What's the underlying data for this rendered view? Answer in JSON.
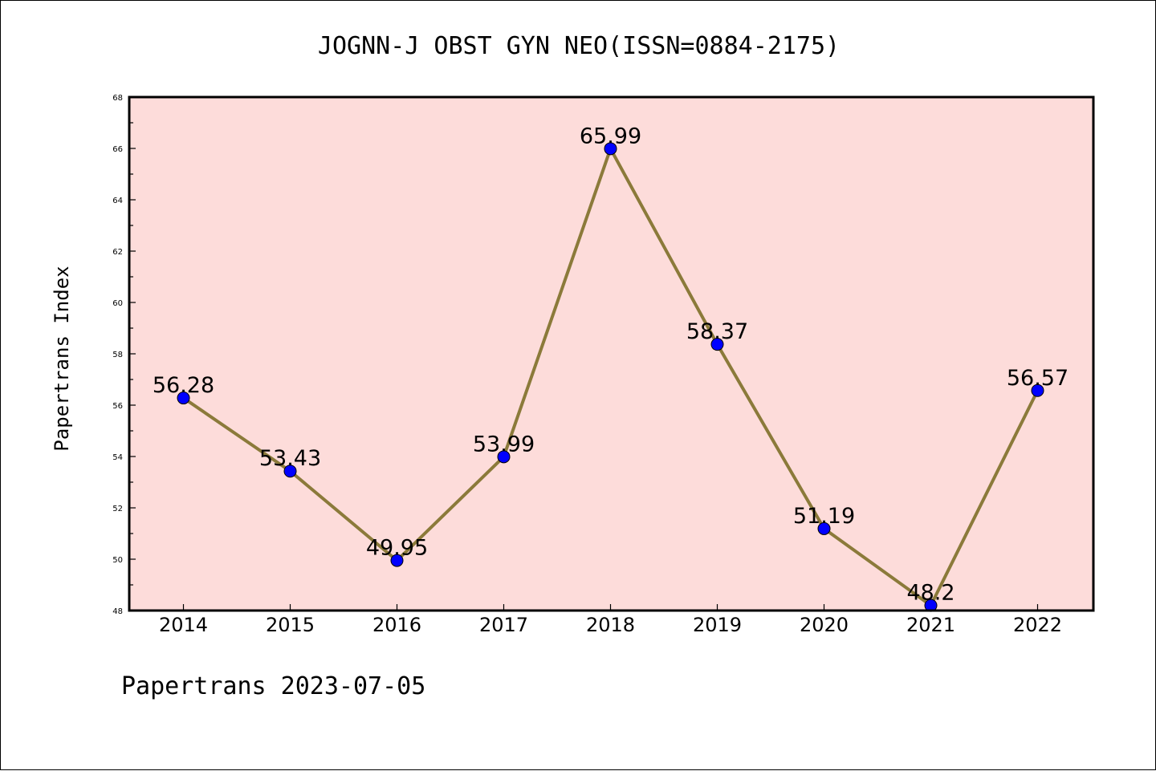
{
  "chart_data": {
    "type": "line",
    "title": "JOGNN-J OBST GYN NEO(ISSN=0884-2175)",
    "ylabel": "Papertrans Index",
    "xlabel": "",
    "categories": [
      "2014",
      "2015",
      "2016",
      "2017",
      "2018",
      "2019",
      "2020",
      "2021",
      "2022"
    ],
    "values": [
      56.28,
      53.43,
      49.95,
      53.99,
      65.99,
      58.37,
      51.19,
      48.2,
      56.57
    ],
    "data_labels": [
      "56.28",
      "53.43",
      "49.95",
      "53.99",
      "65.99",
      "58.37",
      "51.19",
      "48.2",
      "56.57"
    ],
    "ylim": [
      48,
      68
    ],
    "yticks": [
      "48",
      "50",
      "52",
      "54",
      "56",
      "58",
      "60",
      "62",
      "64",
      "66",
      "68"
    ],
    "grid": false,
    "legend": "none",
    "colors": {
      "plot_background": "#fddcda",
      "line": "#8b7a3a",
      "marker": "#0000ff"
    }
  },
  "footer": "Papertrans 2023-07-05"
}
